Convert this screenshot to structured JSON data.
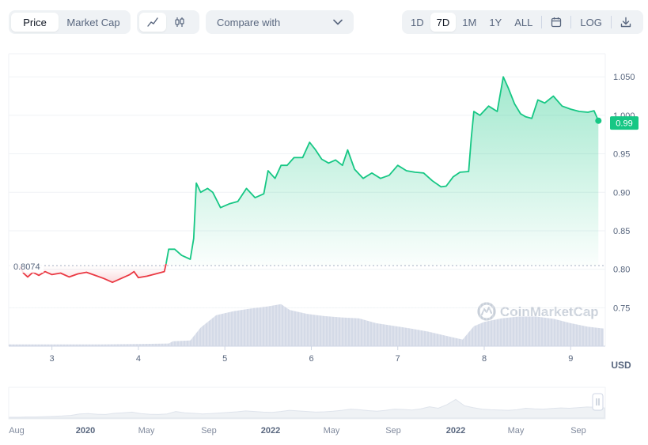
{
  "toolbar": {
    "type_tabs": [
      {
        "label": "Price",
        "active": true
      },
      {
        "label": "Market Cap",
        "active": false
      }
    ],
    "chart_type_icons": [
      {
        "icon": "line-chart-icon",
        "active": true
      },
      {
        "icon": "candlestick-icon",
        "active": false
      }
    ],
    "compare_label": "Compare with",
    "ranges": [
      {
        "label": "1D",
        "active": false
      },
      {
        "label": "7D",
        "active": true
      },
      {
        "label": "1M",
        "active": false
      },
      {
        "label": "1Y",
        "active": false
      },
      {
        "label": "ALL",
        "active": false
      }
    ],
    "calendar_icon": "calendar-icon",
    "log_label": "LOG",
    "download_icon": "download-icon"
  },
  "chart_data": {
    "type": "line",
    "x_ticks": [
      "3",
      "4",
      "5",
      "6",
      "7",
      "8",
      "9"
    ],
    "y_ticks": [
      "1.050",
      "1.000",
      "0.95",
      "0.90",
      "0.85",
      "0.80",
      "0.75"
    ],
    "ylim": [
      0.7,
      1.08
    ],
    "xlim": [
      2.5,
      9.4
    ],
    "currency_label": "USD",
    "reference_value": "0.8074",
    "current_value": "0.99",
    "watermark": "CoinMarketCap",
    "colors": {
      "up": "#16c784",
      "down": "#ea3943",
      "volume": "#cfd6e4",
      "grid": "#eff2f5"
    },
    "price": [
      [
        2.63,
        0.804
      ],
      [
        2.67,
        0.795
      ],
      [
        2.72,
        0.79
      ],
      [
        2.78,
        0.796
      ],
      [
        2.85,
        0.792
      ],
      [
        2.92,
        0.797
      ],
      [
        3.0,
        0.793
      ],
      [
        3.1,
        0.795
      ],
      [
        3.2,
        0.79
      ],
      [
        3.3,
        0.794
      ],
      [
        3.4,
        0.796
      ],
      [
        3.5,
        0.792
      ],
      [
        3.6,
        0.788
      ],
      [
        3.7,
        0.783
      ],
      [
        3.8,
        0.788
      ],
      [
        3.9,
        0.793
      ],
      [
        3.95,
        0.797
      ],
      [
        4.0,
        0.789
      ],
      [
        4.1,
        0.791
      ],
      [
        4.2,
        0.794
      ],
      [
        4.3,
        0.797
      ],
      [
        4.32,
        0.807
      ],
      [
        4.35,
        0.826
      ],
      [
        4.42,
        0.826
      ],
      [
        4.5,
        0.818
      ],
      [
        4.6,
        0.813
      ],
      [
        4.64,
        0.84
      ],
      [
        4.67,
        0.912
      ],
      [
        4.72,
        0.9
      ],
      [
        4.8,
        0.905
      ],
      [
        4.86,
        0.9
      ],
      [
        4.95,
        0.88
      ],
      [
        5.05,
        0.885
      ],
      [
        5.15,
        0.888
      ],
      [
        5.25,
        0.905
      ],
      [
        5.35,
        0.893
      ],
      [
        5.45,
        0.898
      ],
      [
        5.5,
        0.928
      ],
      [
        5.58,
        0.918
      ],
      [
        5.65,
        0.935
      ],
      [
        5.72,
        0.935
      ],
      [
        5.8,
        0.945
      ],
      [
        5.9,
        0.945
      ],
      [
        5.98,
        0.965
      ],
      [
        6.05,
        0.955
      ],
      [
        6.12,
        0.943
      ],
      [
        6.2,
        0.938
      ],
      [
        6.28,
        0.942
      ],
      [
        6.36,
        0.935
      ],
      [
        6.42,
        0.955
      ],
      [
        6.5,
        0.93
      ],
      [
        6.6,
        0.918
      ],
      [
        6.7,
        0.925
      ],
      [
        6.8,
        0.918
      ],
      [
        6.9,
        0.922
      ],
      [
        7.0,
        0.935
      ],
      [
        7.1,
        0.928
      ],
      [
        7.2,
        0.926
      ],
      [
        7.3,
        0.925
      ],
      [
        7.4,
        0.915
      ],
      [
        7.5,
        0.907
      ],
      [
        7.56,
        0.908
      ],
      [
        7.64,
        0.92
      ],
      [
        7.72,
        0.926
      ],
      [
        7.82,
        0.927
      ],
      [
        7.85,
        0.97
      ],
      [
        7.88,
        1.005
      ],
      [
        7.95,
        1.0
      ],
      [
        8.05,
        1.012
      ],
      [
        8.15,
        1.005
      ],
      [
        8.22,
        1.05
      ],
      [
        8.28,
        1.035
      ],
      [
        8.35,
        1.015
      ],
      [
        8.42,
        1.002
      ],
      [
        8.48,
        0.998
      ],
      [
        8.55,
        0.996
      ],
      [
        8.62,
        1.02
      ],
      [
        8.7,
        1.016
      ],
      [
        8.8,
        1.025
      ],
      [
        8.9,
        1.012
      ],
      [
        9.0,
        1.008
      ],
      [
        9.1,
        1.005
      ],
      [
        9.2,
        1.004
      ],
      [
        9.27,
        1.006
      ],
      [
        9.32,
        0.993
      ]
    ],
    "volume": [
      [
        2.5,
        0.04
      ],
      [
        3.0,
        0.04
      ],
      [
        3.5,
        0.04
      ],
      [
        4.0,
        0.05
      ],
      [
        4.35,
        0.06
      ],
      [
        4.4,
        0.11
      ],
      [
        4.6,
        0.13
      ],
      [
        4.72,
        0.42
      ],
      [
        4.9,
        0.7
      ],
      [
        5.1,
        0.79
      ],
      [
        5.3,
        0.85
      ],
      [
        5.5,
        0.9
      ],
      [
        5.65,
        0.95
      ],
      [
        5.75,
        0.82
      ],
      [
        5.95,
        0.73
      ],
      [
        6.15,
        0.68
      ],
      [
        6.35,
        0.65
      ],
      [
        6.55,
        0.63
      ],
      [
        6.75,
        0.52
      ],
      [
        6.95,
        0.46
      ],
      [
        7.15,
        0.4
      ],
      [
        7.35,
        0.33
      ],
      [
        7.55,
        0.24
      ],
      [
        7.75,
        0.15
      ],
      [
        7.88,
        0.45
      ],
      [
        8.0,
        0.55
      ],
      [
        8.2,
        0.63
      ],
      [
        8.4,
        0.67
      ],
      [
        8.6,
        0.67
      ],
      [
        8.8,
        0.62
      ],
      [
        9.0,
        0.52
      ],
      [
        9.2,
        0.44
      ],
      [
        9.38,
        0.4
      ]
    ],
    "navigator_labels": [
      "Aug",
      "2020",
      "May",
      "Sep",
      "2022",
      "May",
      "Sep",
      "2022",
      "May",
      "Sep"
    ],
    "navigator_label_bold": [
      false,
      true,
      false,
      false,
      true,
      false,
      false,
      true,
      false,
      false
    ],
    "navigator_series": [
      0.03,
      0.03,
      0.04,
      0.04,
      0.05,
      0.06,
      0.07,
      0.09,
      0.14,
      0.15,
      0.13,
      0.12,
      0.16,
      0.18,
      0.2,
      0.15,
      0.13,
      0.12,
      0.14,
      0.22,
      0.18,
      0.16,
      0.14,
      0.15,
      0.17,
      0.19,
      0.21,
      0.24,
      0.22,
      0.2,
      0.19,
      0.22,
      0.26,
      0.24,
      0.22,
      0.2,
      0.21,
      0.23,
      0.26,
      0.3,
      0.28,
      0.25,
      0.23,
      0.26,
      0.3,
      0.29,
      0.27,
      0.31,
      0.38,
      0.33,
      0.45,
      0.62,
      0.41,
      0.35,
      0.3,
      0.28,
      0.27,
      0.26,
      0.28,
      0.33,
      0.31,
      0.3,
      0.32,
      0.34,
      0.33,
      0.35,
      0.37,
      0.36,
      0.34
    ]
  }
}
